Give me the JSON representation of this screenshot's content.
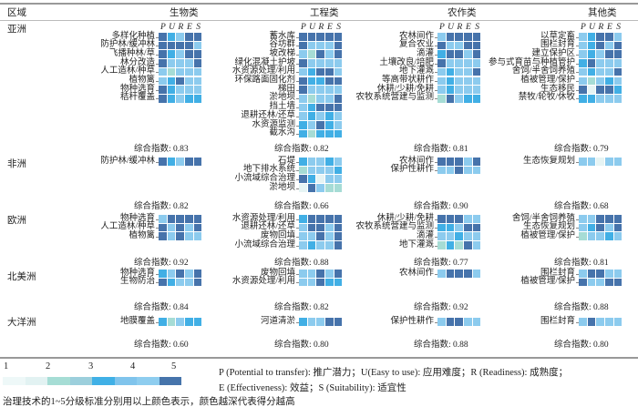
{
  "header": {
    "region": "区域",
    "categories": [
      "生物类",
      "工程类",
      "农作类",
      "其他类"
    ],
    "pures": [
      "P",
      "U",
      "R",
      "E",
      "S"
    ]
  },
  "index_prefix": "综合指数: ",
  "colors": {
    "1": "#e6f4f4",
    "2": "#a6dcd5",
    "3": "#41afe5",
    "4": "#8ccbee",
    "5": "#4673ab"
  },
  "chart_data": {
    "type": "heatmap",
    "columns": [
      "P",
      "U",
      "R",
      "E",
      "S"
    ],
    "scale": [
      1,
      5
    ],
    "regions": [
      {
        "name": "亚洲",
        "groups": [
          {
            "index": "0.83",
            "rows": [
              {
                "label": "多样化种植",
                "scores": [
                  5,
                  3,
                  4,
                  5,
                  5
                ]
              },
              {
                "label": "防护林/缓冲林",
                "scores": [
                  5,
                  5,
                  5,
                  5,
                  4
                ]
              },
              {
                "label": "飞播种林/草",
                "scores": [
                  5,
                  3,
                  4,
                  5,
                  5
                ]
              },
              {
                "label": "林分改造",
                "scores": [
                  5,
                  4,
                  4,
                  4,
                  5
                ]
              },
              {
                "label": "人工造林/种草",
                "scores": [
                  4,
                  2,
                  4,
                  4,
                  4
                ]
              },
              {
                "label": "植物篱",
                "scores": [
                  4,
                  3,
                  5,
                  4,
                  4
                ]
              },
              {
                "label": "物种选育",
                "scores": [
                  5,
                  3,
                  4,
                  4,
                  4
                ]
              },
              {
                "label": "秸秆覆盖",
                "scores": [
                  5,
                  3,
                  4,
                  3,
                  3
                ]
              }
            ]
          },
          {
            "index": "0.82",
            "rows": [
              {
                "label": "蓄水库",
                "scores": [
                  5,
                  5,
                  5,
                  5,
                  5
                ]
              },
              {
                "label": "谷坊群",
                "scores": [
                  5,
                  4,
                  4,
                  4,
                  5
                ]
              },
              {
                "label": "坡改梯",
                "scores": [
                  4,
                  2,
                  5,
                  4,
                  5
                ]
              },
              {
                "label": "绿化混凝土护坡",
                "scores": [
                  5,
                  4,
                  4,
                  4,
                  4
                ]
              },
              {
                "label": "水资源处理/利用",
                "scores": [
                  4,
                  3,
                  5,
                  5,
                  4
                ]
              },
              {
                "label": "环保路面固化剂",
                "scores": [
                  5,
                  3,
                  3,
                  5,
                  5
                ]
              },
              {
                "label": "梯田",
                "scores": [
                  5,
                  4,
                  4,
                  4,
                  4
                ]
              },
              {
                "label": "淤地坝",
                "scores": [
                  4,
                  2,
                  4,
                  4,
                  5
                ]
              },
              {
                "label": "挡土墙",
                "scores": [
                  4,
                  3,
                  5,
                  5,
                  5
                ]
              },
              {
                "label": "退耕还林/还草",
                "scores": [
                  4,
                  3,
                  4,
                  3,
                  4
                ]
              },
              {
                "label": "水资源监测",
                "scores": [
                  3,
                  4,
                  5,
                  3,
                  4
                ]
              },
              {
                "label": "截水沟",
                "scores": [
                  3,
                  2,
                  3,
                  3,
                  3
                ]
              }
            ]
          },
          {
            "index": "0.81",
            "rows": [
              {
                "label": "农林间作",
                "scores": [
                  4,
                  5,
                  5,
                  5,
                  5
                ]
              },
              {
                "label": "复合农业",
                "scores": [
                  5,
                  4,
                  4,
                  5,
                  5
                ]
              },
              {
                "label": "滴灌",
                "scores": [
                  3,
                  5,
                  5,
                  4,
                  5
                ]
              },
              {
                "label": "土壤改良/培肥",
                "scores": [
                  5,
                  4,
                  4,
                  4,
                  4
                ]
              },
              {
                "label": "地下灌溉",
                "scores": [
                  4,
                  3,
                  4,
                  4,
                  5
                ]
              },
              {
                "label": "等高带状耕作",
                "scores": [
                  4,
                  3,
                  4,
                  4,
                  4
                ]
              },
              {
                "label": "休耕/少耕/免耕",
                "scores": [
                  4,
                  3,
                  4,
                  4,
                  4
                ]
              },
              {
                "label": "农牧系统营建与监测",
                "scores": [
                  2,
                  5,
                  4,
                  3,
                  3
                ]
              }
            ]
          },
          {
            "index": "0.79",
            "rows": [
              {
                "label": "以草定畜",
                "scores": [
                  4,
                  3,
                  5,
                  5,
                  4
                ]
              },
              {
                "label": "围栏封育",
                "scores": [
                  4,
                  3,
                  5,
                  4,
                  5
                ]
              },
              {
                "label": "建立保护区",
                "scores": [
                  4,
                  3,
                  4,
                  5,
                  5
                ]
              },
              {
                "label": "参与式育苗与种植管护",
                "scores": [
                  3,
                  5,
                  4,
                  4,
                  4
                ]
              },
              {
                "label": "舍饲/半舍饲养殖",
                "scores": [
                  4,
                  3,
                  4,
                  4,
                  5
                ]
              },
              {
                "label": "植被管理/保护",
                "scores": [
                  4,
                  2,
                  4,
                  3,
                  4
                ]
              },
              {
                "label": "生态移民",
                "scores": [
                  5,
                  1,
                  5,
                  5,
                  3
                ]
              },
              {
                "label": "禁牧/轮牧/休牧",
                "scores": [
                  3,
                  3,
                  4,
                  4,
                  4
                ]
              }
            ]
          }
        ]
      },
      {
        "name": "非洲",
        "groups": [
          {
            "index": "0.82",
            "rows": [
              {
                "label": "防护林/缓冲林",
                "scores": [
                  5,
                  3,
                  4,
                  5,
                  5
                ]
              }
            ]
          },
          {
            "index": "0.66",
            "rows": [
              {
                "label": "石堤",
                "scores": [
                  3,
                  4,
                  4,
                  3,
                  4
                ]
              },
              {
                "label": "地下排水系统",
                "scores": [
                  2,
                  4,
                  4,
                  4,
                  3
                ]
              },
              {
                "label": "小流域综合治理",
                "scores": [
                  5,
                  3,
                  1,
                  4,
                  4
                ]
              },
              {
                "label": "淤地坝",
                "scores": [
                  1,
                  5,
                  4,
                  2,
                  2
                ]
              }
            ]
          },
          {
            "index": "0.90",
            "rows": [
              {
                "label": "农林间作",
                "scores": [
                  5,
                  5,
                  5,
                  4,
                  5
                ]
              },
              {
                "label": "保护性耕作",
                "scores": [
                  4,
                  4,
                  5,
                  4,
                  4
                ]
              }
            ]
          },
          {
            "index": "0.68",
            "rows": [
              {
                "label": "生态恢复规划",
                "scores": [
                  4,
                  4,
                  1,
                  4,
                  4
                ]
              }
            ]
          }
        ]
      },
      {
        "name": "欧洲",
        "groups": [
          {
            "index": "0.92",
            "rows": [
              {
                "label": "物种选育",
                "scores": [
                  4,
                  5,
                  5,
                  5,
                  5
                ]
              },
              {
                "label": "人工造林/种草",
                "scores": [
                  5,
                  4,
                  5,
                  4,
                  5
                ]
              },
              {
                "label": "植物篱",
                "scores": [
                  5,
                  4,
                  5,
                  4,
                  4
                ]
              }
            ]
          },
          {
            "index": "0.88",
            "rows": [
              {
                "label": "水资源处理/利用",
                "scores": [
                  3,
                  5,
                  5,
                  5,
                  5
                ]
              },
              {
                "label": "退耕还林/还草",
                "scores": [
                  4,
                  5,
                  5,
                  4,
                  5
                ]
              },
              {
                "label": "废物回填",
                "scores": [
                  4,
                  4,
                  5,
                  4,
                  5
                ]
              },
              {
                "label": "小流域综合治理",
                "scores": [
                  4,
                  3,
                  4,
                  4,
                  5
                ]
              }
            ]
          },
          {
            "index": "0.77",
            "rows": [
              {
                "label": "休耕/少耕/免耕",
                "scores": [
                  5,
                  5,
                  5,
                  4,
                  4
                ]
              },
              {
                "label": "农牧系统营建与监测",
                "scores": [
                  3,
                  3,
                  4,
                  5,
                  5
                ]
              },
              {
                "label": "滴灌",
                "scores": [
                  4,
                  4,
                  3,
                  4,
                  4
                ]
              },
              {
                "label": "地下灌溉",
                "scores": [
                  2,
                  3,
                  2,
                  5,
                  4
                ]
              }
            ]
          },
          {
            "index": "0.81",
            "rows": [
              {
                "label": "舍饲/半舍饲养殖",
                "scores": [
                  4,
                  4,
                  5,
                  5,
                  5
                ]
              },
              {
                "label": "生态恢复规划",
                "scores": [
                  4,
                  3,
                  5,
                  4,
                  5
                ]
              },
              {
                "label": "植被管理/保护",
                "scores": [
                  2,
                  4,
                  4,
                  3,
                  4
                ]
              }
            ]
          }
        ]
      },
      {
        "name": "北美洲",
        "groups": [
          {
            "index": "0.84",
            "rows": [
              {
                "label": "物种选育",
                "scores": [
                  3,
                  4,
                  5,
                  4,
                  5
                ]
              },
              {
                "label": "生物防治",
                "scores": [
                  5,
                  3,
                  4,
                  4,
                  5
                ]
              }
            ]
          },
          {
            "index": "0.82",
            "rows": [
              {
                "label": "废物回填",
                "scores": [
                  4,
                  4,
                  5,
                  4,
                  5
                ]
              },
              {
                "label": "水资源处理/利用",
                "scores": [
                  4,
                  4,
                  5,
                  3,
                  3
                ]
              }
            ]
          },
          {
            "index": "0.92",
            "rows": [
              {
                "label": "农林间作",
                "scores": [
                  4,
                  5,
                  5,
                  5,
                  4
                ]
              }
            ]
          },
          {
            "index": "0.88",
            "rows": [
              {
                "label": "围栏封育",
                "scores": [
                  4,
                  5,
                  5,
                  4,
                  4
                ]
              },
              {
                "label": "植被管理/保护",
                "scores": [
                  5,
                  4,
                  4,
                  5,
                  5
                ]
              }
            ]
          }
        ]
      },
      {
        "name": "大洋洲",
        "groups": [
          {
            "index": "0.60",
            "rows": [
              {
                "label": "地膜覆盖",
                "scores": [
                  3,
                  2,
                  4,
                  3,
                  3
                ]
              }
            ]
          },
          {
            "index": "0.80",
            "rows": [
              {
                "label": "河道清淤",
                "scores": [
                  3,
                  4,
                  4,
                  5,
                  5
                ]
              }
            ]
          },
          {
            "index": "0.88",
            "rows": [
              {
                "label": "保护性耕作",
                "scores": [
                  4,
                  5,
                  5,
                  4,
                  4
                ]
              }
            ]
          },
          {
            "index": "0.80",
            "rows": [
              {
                "label": "围栏封育",
                "scores": [
                  4,
                  5,
                  4,
                  4,
                  4
                ]
              }
            ]
          }
        ]
      }
    ]
  },
  "legend": {
    "ticks": [
      "1",
      "2",
      "3",
      "4",
      "5"
    ],
    "bar_colors": [
      "#eef8f8",
      "#e2f2f2",
      "#a6ddd5",
      "#9ccfdc",
      "#40b0e6",
      "#80c4ec",
      "#8ecdef",
      "#4674ab"
    ],
    "definitions_line1": "P (Potential to transfer): 推广潜力；U(Easy to use): 应用难度；R (Readiness): 成熟度；",
    "definitions_line2": "E (Effectiveness): 效益；S (Suitability): 适宜性",
    "note": "治理技术的1~5分级标准分别用以上颜色表示，颜色越深代表得分越高"
  }
}
